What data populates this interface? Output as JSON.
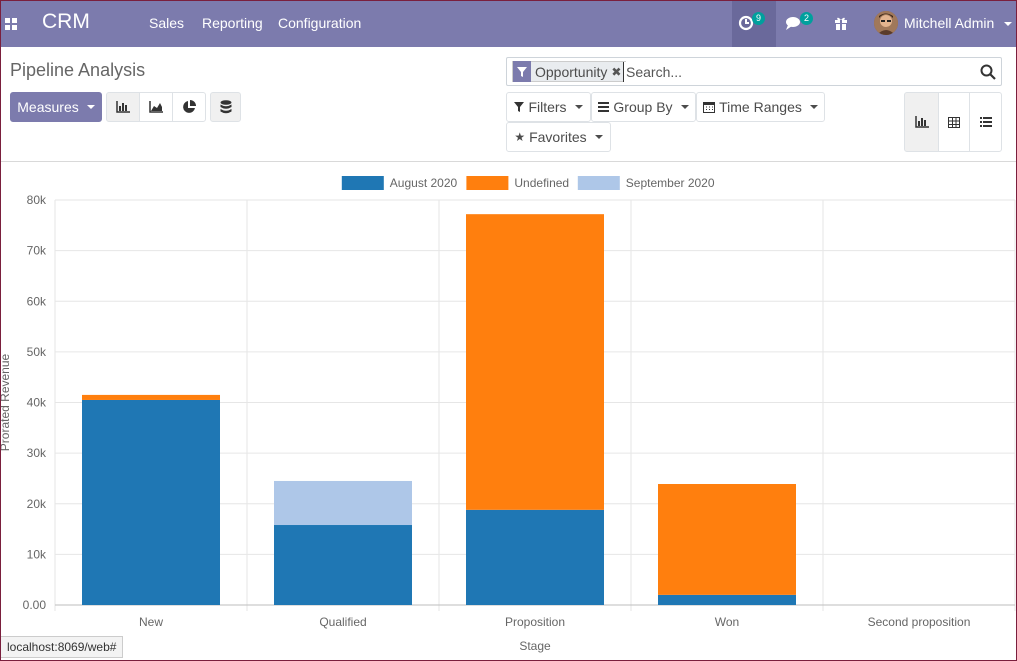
{
  "navbar": {
    "brand": "CRM",
    "menu": [
      "Sales",
      "Reporting",
      "Configuration"
    ],
    "activity_count": "9",
    "messages_count": "2",
    "user_name": "Mitchell Admin"
  },
  "control_panel": {
    "title": "Pipeline Analysis",
    "measures_label": "Measures",
    "search": {
      "facet": "Opportunity",
      "placeholder": "Search..."
    },
    "filters_label": "Filters",
    "group_by_label": "Group By",
    "time_ranges_label": "Time Ranges",
    "favorites_label": "Favorites"
  },
  "status_bar": {
    "url": "localhost:8069/web#"
  },
  "colors": {
    "nav": "#7c7bad",
    "aug2020": "#1f77b4",
    "undefined": "#ff7f0e",
    "sep2020": "#aec7e8"
  },
  "chart_data": {
    "type": "bar",
    "stacked": true,
    "categories": [
      "New",
      "Qualified",
      "Proposition",
      "Won",
      "Second proposition"
    ],
    "series": [
      {
        "name": "August 2020",
        "color": "#1f77b4",
        "values": [
          40500,
          15800,
          18800,
          2000,
          0
        ]
      },
      {
        "name": "Undefined",
        "color": "#ff7f0e",
        "values": [
          1000,
          0,
          58400,
          21900,
          0
        ]
      },
      {
        "name": "September 2020",
        "color": "#aec7e8",
        "values": [
          0,
          8700,
          0,
          0,
          0
        ]
      }
    ],
    "ylim": [
      0,
      80000
    ],
    "yticks": [
      "0.00",
      "10k",
      "20k",
      "30k",
      "40k",
      "50k",
      "60k",
      "70k",
      "80k"
    ],
    "xlabel": "Stage",
    "ylabel": "Prorated Revenue",
    "grid": true,
    "legend": "top-center"
  }
}
